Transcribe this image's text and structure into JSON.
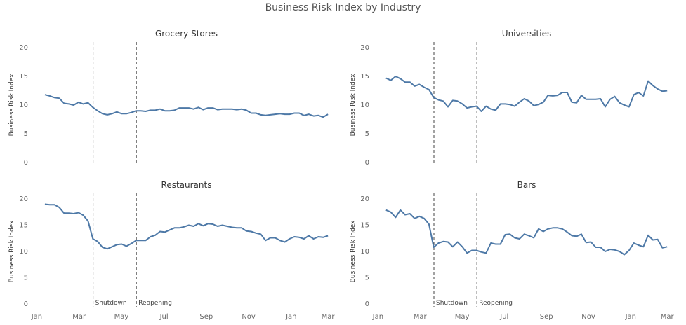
{
  "title": "Business Risk Index by Industry",
  "event_labels": [
    "Shutdown",
    "Reopening"
  ],
  "line_color": "#4e79a7",
  "chart_data": [
    {
      "type": "line",
      "title": "Grocery Stores",
      "ylabel": "Business Risk Index",
      "ylim": [
        0,
        20
      ],
      "yticks": [
        0,
        5,
        10,
        15,
        20
      ],
      "xticks": [
        "Jan",
        "Mar",
        "May",
        "Jul",
        "Sep",
        "Nov",
        "Jan",
        "Mar"
      ],
      "events": [
        "Shutdown",
        "Reopening"
      ],
      "show_event_labels": false,
      "values": [
        11.8,
        11.6,
        11.3,
        11.2,
        10.3,
        10.2,
        10.0,
        10.5,
        10.2,
        10.4,
        9.6,
        9.0,
        8.5,
        8.3,
        8.5,
        8.8,
        8.5,
        8.5,
        8.7,
        9.0,
        9.0,
        8.9,
        9.1,
        9.1,
        9.3,
        9.0,
        9.0,
        9.1,
        9.5,
        9.5,
        9.5,
        9.3,
        9.6,
        9.2,
        9.5,
        9.5,
        9.2,
        9.3,
        9.3,
        9.3,
        9.2,
        9.3,
        9.1,
        8.6,
        8.6,
        8.3,
        8.2,
        8.3,
        8.4,
        8.5,
        8.4,
        8.4,
        8.6,
        8.6,
        8.2,
        8.4,
        8.1,
        8.2,
        7.9,
        8.4
      ]
    },
    {
      "type": "line",
      "title": "Universities",
      "ylabel": "Business Risk Index",
      "ylim": [
        0,
        20
      ],
      "yticks": [
        0,
        5,
        10,
        15,
        20
      ],
      "xticks": [
        "Jan",
        "Mar",
        "May",
        "Jul",
        "Sep",
        "Nov",
        "Jan",
        "Mar"
      ],
      "events": [
        "Shutdown",
        "Reopening"
      ],
      "show_event_labels": false,
      "values": [
        14.7,
        14.3,
        15.0,
        14.6,
        14.0,
        14.0,
        13.3,
        13.6,
        13.1,
        12.7,
        11.3,
        10.9,
        10.7,
        9.7,
        10.8,
        10.7,
        10.2,
        9.5,
        9.7,
        9.8,
        8.9,
        9.8,
        9.3,
        9.1,
        10.2,
        10.2,
        10.1,
        9.8,
        10.5,
        11.1,
        10.7,
        9.9,
        10.1,
        10.5,
        11.7,
        11.6,
        11.7,
        12.2,
        12.2,
        10.5,
        10.4,
        11.7,
        11.0,
        11.0,
        11.0,
        11.1,
        9.7,
        11.0,
        11.5,
        10.4,
        10.0,
        9.7,
        11.8,
        12.2,
        11.6,
        14.2,
        13.4,
        12.8,
        12.4,
        12.5
      ]
    },
    {
      "type": "line",
      "title": "Restaurants",
      "ylabel": "Business Risk Index",
      "ylim": [
        0,
        20
      ],
      "yticks": [
        0,
        5,
        10,
        15,
        20
      ],
      "xticks": [
        "Jan",
        "Mar",
        "May",
        "Jul",
        "Sep",
        "Nov",
        "Jan",
        "Mar"
      ],
      "events": [
        "Shutdown",
        "Reopening"
      ],
      "show_event_labels": true,
      "values": [
        19.0,
        18.9,
        18.9,
        18.4,
        17.3,
        17.3,
        17.2,
        17.4,
        16.9,
        15.8,
        12.4,
        11.9,
        10.8,
        10.5,
        10.9,
        11.3,
        11.4,
        11.0,
        11.5,
        12.1,
        12.1,
        12.1,
        12.8,
        13.1,
        13.8,
        13.7,
        14.1,
        14.5,
        14.5,
        14.7,
        15.0,
        14.8,
        15.3,
        14.9,
        15.3,
        15.2,
        14.8,
        15.0,
        14.8,
        14.6,
        14.5,
        14.5,
        13.9,
        13.8,
        13.5,
        13.3,
        12.1,
        12.6,
        12.6,
        12.1,
        11.8,
        12.4,
        12.8,
        12.7,
        12.4,
        13.0,
        12.4,
        12.8,
        12.7,
        13.0
      ]
    },
    {
      "type": "line",
      "title": "Bars",
      "ylabel": "Business Risk Index",
      "ylim": [
        0,
        20
      ],
      "yticks": [
        0,
        5,
        10,
        15,
        20
      ],
      "xticks": [
        "Jan",
        "Mar",
        "May",
        "Jul",
        "Sep",
        "Nov",
        "Jan",
        "Mar"
      ],
      "events": [
        "Shutdown",
        "Reopening"
      ],
      "show_event_labels": true,
      "values": [
        17.9,
        17.5,
        16.5,
        17.9,
        17.0,
        17.2,
        16.3,
        16.7,
        16.3,
        15.2,
        10.8,
        11.6,
        11.9,
        11.8,
        10.9,
        11.8,
        10.9,
        9.7,
        10.2,
        10.2,
        9.9,
        9.7,
        11.6,
        11.4,
        11.4,
        13.2,
        13.3,
        12.6,
        12.4,
        13.3,
        13.0,
        12.6,
        14.3,
        13.8,
        14.3,
        14.5,
        14.5,
        14.3,
        13.7,
        13.0,
        12.9,
        13.3,
        11.7,
        11.8,
        10.8,
        10.8,
        10.0,
        10.4,
        10.3,
        10.0,
        9.4,
        10.2,
        11.6,
        11.2,
        10.9,
        13.1,
        12.2,
        12.3,
        10.7,
        10.9
      ]
    }
  ]
}
